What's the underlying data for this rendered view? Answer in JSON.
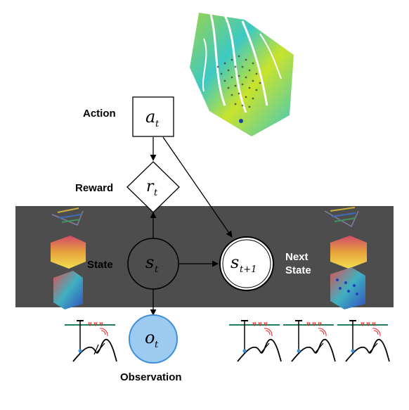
{
  "nodes": {
    "action": {
      "label": "Action",
      "symbol": "a",
      "sub": "t"
    },
    "reward": {
      "label": "Reward",
      "symbol": "r",
      "sub": "t"
    },
    "state": {
      "label": "State",
      "symbol": "s",
      "sub": "t"
    },
    "next_state": {
      "label_line1": "Next",
      "label_line2": "State",
      "symbol": "s",
      "sub": "t+1"
    },
    "observation": {
      "label": "Observation",
      "symbol": "o",
      "sub": "t"
    }
  },
  "colors": {
    "state_band": "#4d4d4d",
    "observation_fill": "#9ccaf0",
    "observation_stroke": "#3f8fd6",
    "map_green": "#8fd14f",
    "map_cyan": "#35c9c9",
    "map_yellow": "#d6e62a",
    "well_sensor_red": "#e02020",
    "ground_green": "#1f7f5c"
  },
  "icons": {
    "map": "subsurface-property-map-icon",
    "state_models": "geologic-model-stack-icon",
    "observation": "well-seismic-survey-icon"
  }
}
